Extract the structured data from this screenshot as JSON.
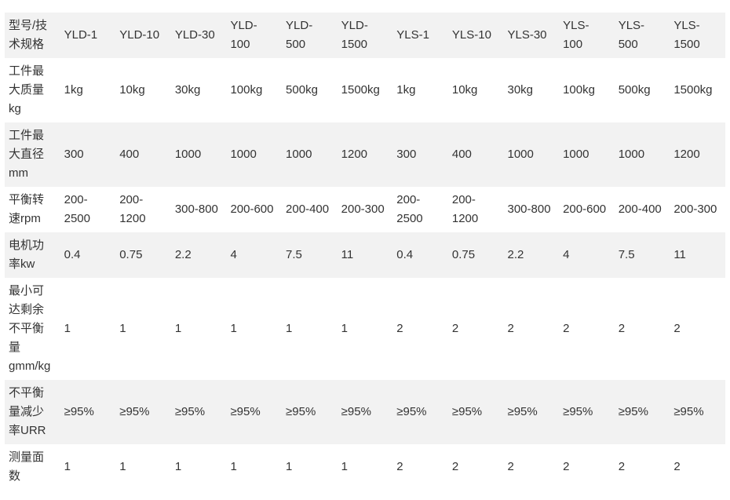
{
  "table": {
    "header": [
      "型号/技术规格",
      "YLD-1",
      "YLD-10",
      "YLD-30",
      "YLD-100",
      "YLD-500",
      "YLD-1500",
      "YLS-1",
      "YLS-10",
      "YLS-30",
      "YLS-100",
      "YLS-500",
      "YLS-1500"
    ],
    "rows": [
      [
        "工件最大质量kg",
        "1kg",
        "10kg",
        "30kg",
        "100kg",
        "500kg",
        "1500kg",
        "1kg",
        "10kg",
        "30kg",
        "100kg",
        "500kg",
        "1500kg"
      ],
      [
        "工件最大直径mm",
        "300",
        "400",
        "1000",
        "1000",
        "1000",
        "1200",
        "300",
        "400",
        "1000",
        "1000",
        "1000",
        "1200"
      ],
      [
        "平衡转速rpm",
        "200-2500",
        "200-1200",
        "300-800",
        "200-600",
        "200-400",
        "200-300",
        "200-2500",
        "200-1200",
        "300-800",
        "200-600",
        "200-400",
        "200-300"
      ],
      [
        "电机功率kw",
        "0.4",
        "0.75",
        "2.2",
        "4",
        "7.5",
        "11",
        "0.4",
        "0.75",
        "2.2",
        "4",
        "7.5",
        "11"
      ],
      [
        "最小可达剩余不平衡量gmm/kg",
        "1",
        "1",
        "1",
        "1",
        "1",
        "1",
        "2",
        "2",
        "2",
        "2",
        "2",
        "2"
      ],
      [
        "不平衡量减少率URR",
        "≥95%",
        "≥95%",
        "≥95%",
        "≥95%",
        "≥95%",
        "≥95%",
        "≥95%",
        "≥95%",
        "≥95%",
        "≥95%",
        "≥95%",
        "≥95%"
      ],
      [
        "测量面数",
        "1",
        "1",
        "1",
        "1",
        "1",
        "1",
        "2",
        "2",
        "2",
        "2",
        "2",
        "2"
      ]
    ]
  }
}
